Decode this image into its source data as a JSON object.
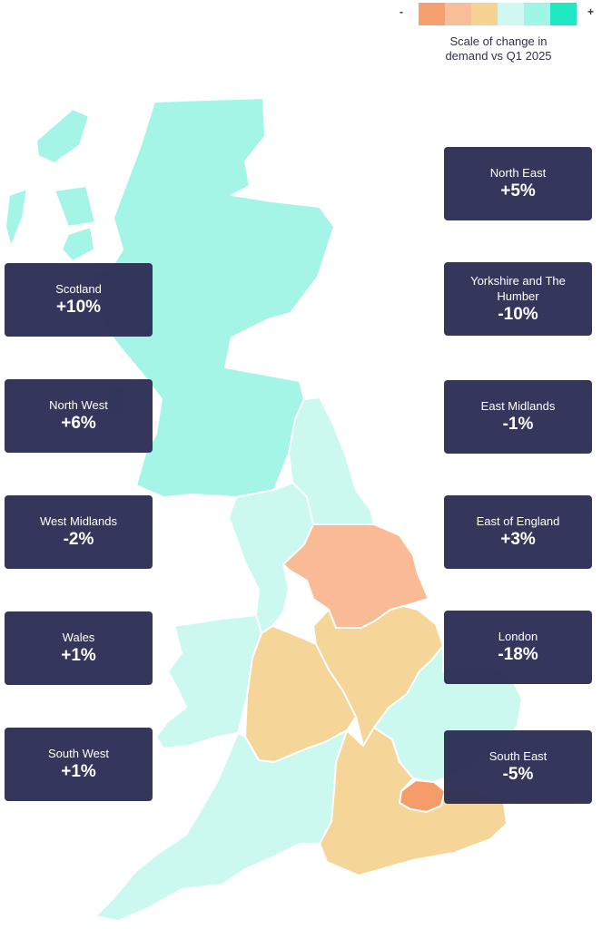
{
  "legend": {
    "minus": "-",
    "plus": "+",
    "caption": "Scale of change in demand vs Q1 2025",
    "scale_colors": [
      "#f7a06f",
      "#f8bd99",
      "#f4d395",
      "#d0f8f0",
      "#a1f5e5",
      "#1fe8c2"
    ]
  },
  "regions": [
    {
      "name": "North East",
      "change": "+5%",
      "color": "#cbf9ef"
    },
    {
      "name": "Yorkshire and The Humber",
      "change": "-10%",
      "color": "#f8bb95"
    },
    {
      "name": "East Midlands",
      "change": "-1%",
      "color": "#f5d598"
    },
    {
      "name": "East of England",
      "change": "+3%",
      "color": "#cbf9ef"
    },
    {
      "name": "London",
      "change": "-18%",
      "color": "#f69c6b"
    },
    {
      "name": "South East",
      "change": "-5%",
      "color": "#f5d598"
    },
    {
      "name": "Scotland",
      "change": "+10%",
      "color": "#a4f5e6"
    },
    {
      "name": "North West",
      "change": "+6%",
      "color": "#cbf9ef"
    },
    {
      "name": "West Midlands",
      "change": "-2%",
      "color": "#f5d598"
    },
    {
      "name": "Wales",
      "change": "+1%",
      "color": "#cbf9ef"
    },
    {
      "name": "South West",
      "change": "+1%",
      "color": "#cbf9ef"
    }
  ]
}
